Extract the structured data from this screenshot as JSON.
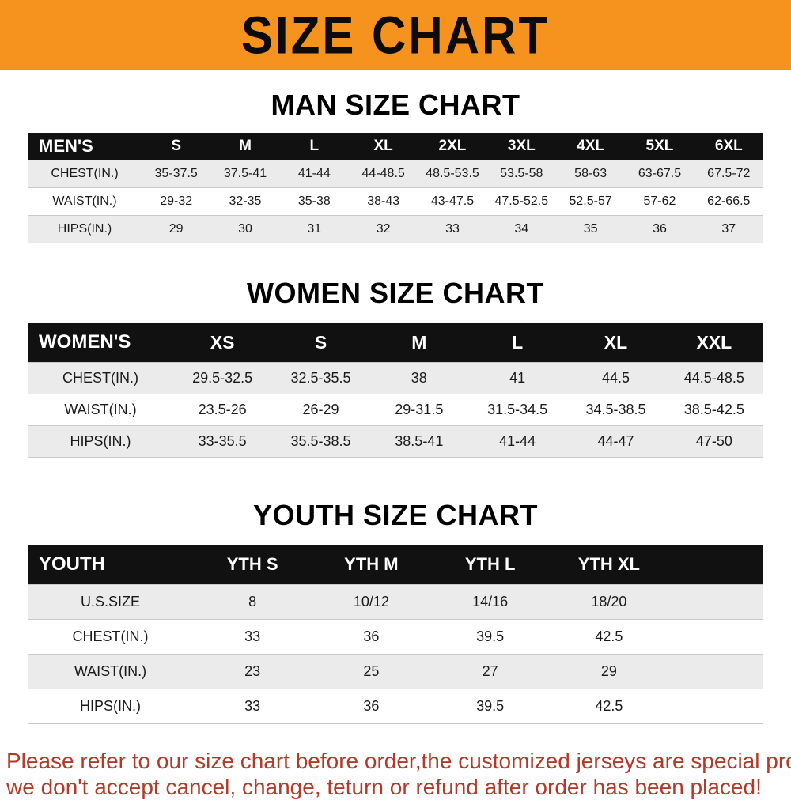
{
  "theme": {
    "banner_bg": "#f6921e",
    "header_bg": "#111111",
    "row_alt": "#ebebeb",
    "footnote_color": "#b23a2b"
  },
  "banner": {
    "title": "SIZE CHART"
  },
  "sections": [
    {
      "id": "men",
      "heading": "MAN SIZE CHART",
      "table": {
        "label": "MEN'S",
        "columns": [
          "S",
          "M",
          "L",
          "XL",
          "2XL",
          "3XL",
          "4XL",
          "5XL",
          "6XL"
        ],
        "rows": [
          {
            "label": "CHEST(IN.)",
            "values": [
              "35-37.5",
              "37.5-41",
              "41-44",
              "44-48.5",
              "48.5-53.5",
              "53.5-58",
              "58-63",
              "63-67.5",
              "67.5-72"
            ]
          },
          {
            "label": "WAIST(IN.)",
            "values": [
              "29-32",
              "32-35",
              "35-38",
              "38-43",
              "43-47.5",
              "47.5-52.5",
              "52.5-57",
              "57-62",
              "62-66.5"
            ]
          },
          {
            "label": "HIPS(IN.)",
            "values": [
              "29",
              "30",
              "31",
              "32",
              "33",
              "34",
              "35",
              "36",
              "37"
            ]
          }
        ]
      }
    },
    {
      "id": "women",
      "heading": "WOMEN SIZE CHART",
      "table": {
        "label": "WOMEN'S",
        "columns": [
          "XS",
          "S",
          "M",
          "L",
          "XL",
          "XXL"
        ],
        "rows": [
          {
            "label": "CHEST(IN.)",
            "values": [
              "29.5-32.5",
              "32.5-35.5",
              "38",
              "41",
              "44.5",
              "44.5-48.5"
            ]
          },
          {
            "label": "WAIST(IN.)",
            "values": [
              "23.5-26",
              "26-29",
              "29-31.5",
              "31.5-34.5",
              "34.5-38.5",
              "38.5-42.5"
            ]
          },
          {
            "label": "HIPS(IN.)",
            "values": [
              "33-35.5",
              "35.5-38.5",
              "38.5-41",
              "41-44",
              "44-47",
              "47-50"
            ]
          }
        ]
      }
    },
    {
      "id": "youth",
      "heading": "YOUTH SIZE CHART",
      "table": {
        "label": "YOUTH",
        "columns": [
          "YTH S",
          "YTH M",
          "YTH L",
          "YTH XL"
        ],
        "rows": [
          {
            "label": "U.S.SIZE",
            "values": [
              "8",
              "10/12",
              "14/16",
              "18/20"
            ]
          },
          {
            "label": "CHEST(IN.)",
            "values": [
              "33",
              "36",
              "39.5",
              "42.5"
            ]
          },
          {
            "label": "WAIST(IN.)",
            "values": [
              "23",
              "25",
              "27",
              "29"
            ]
          },
          {
            "label": "HIPS(IN.)",
            "values": [
              "33",
              "36",
              "39.5",
              "42.5"
            ]
          }
        ]
      }
    }
  ],
  "footnote": {
    "line1": "Please refer to our size chart before order,the customized jerseys are special products,",
    "line2": "we don't accept cancel, change, teturn or refund after order has been placed!"
  }
}
